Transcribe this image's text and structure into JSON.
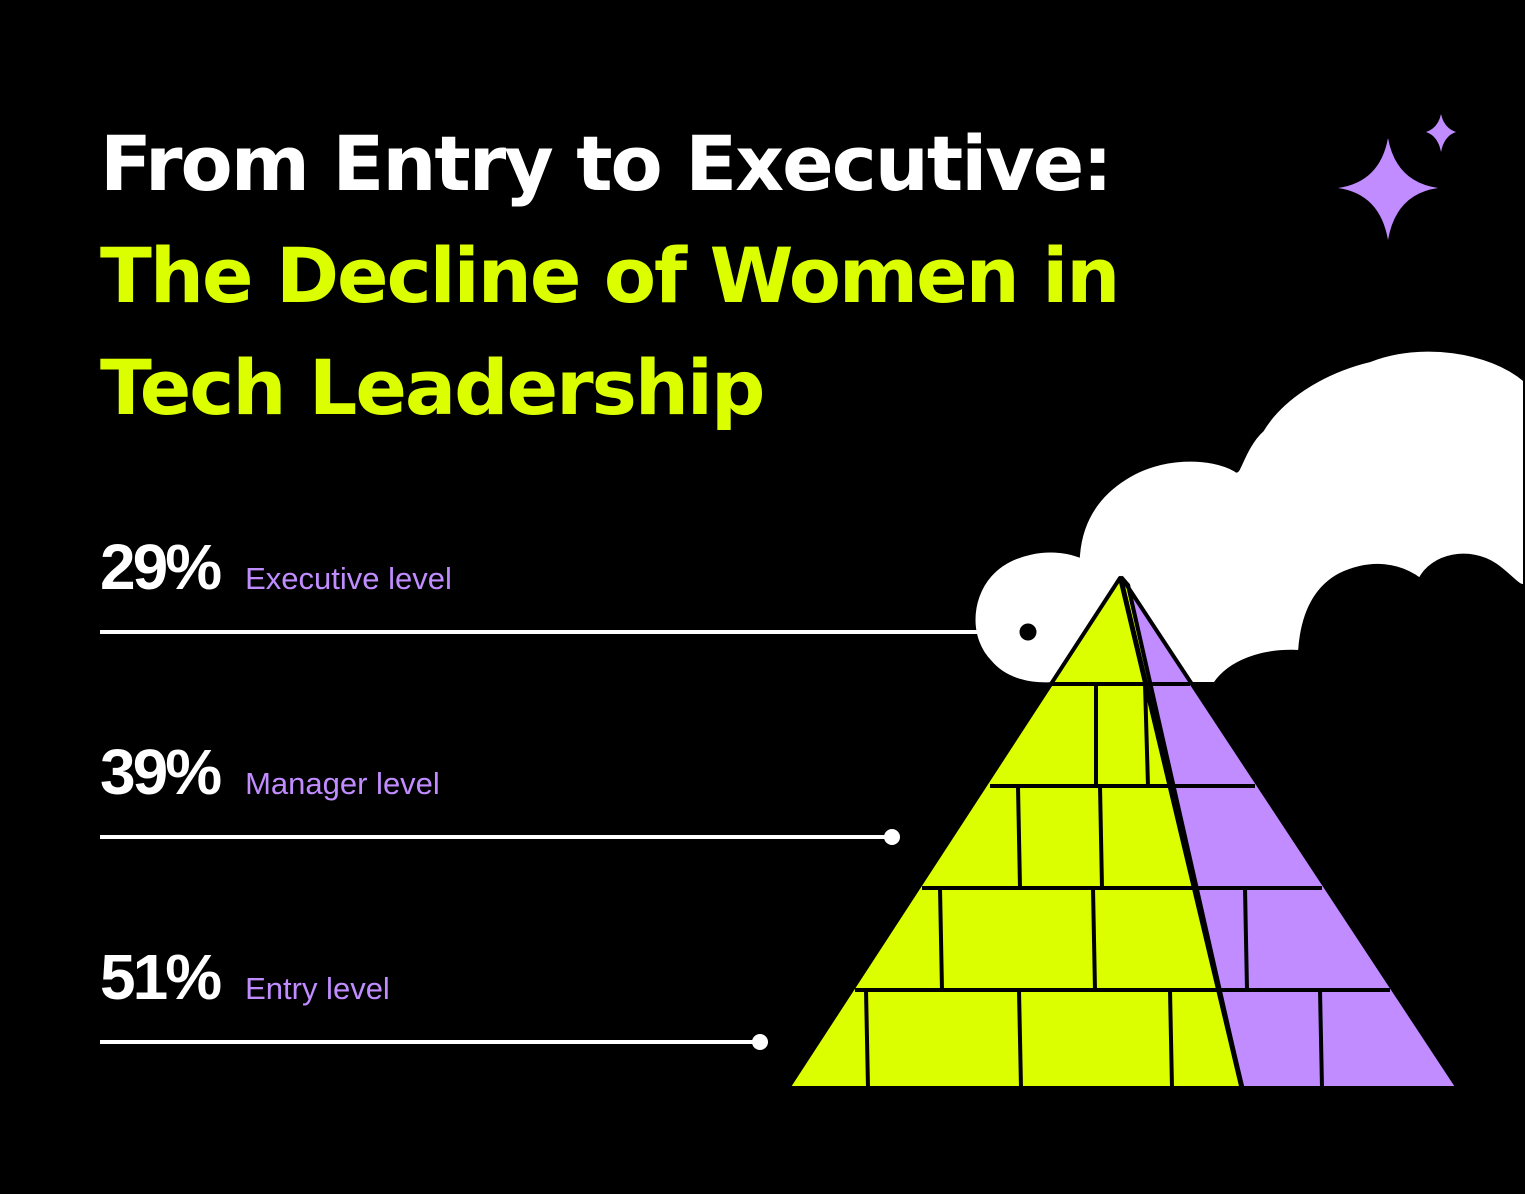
{
  "title": {
    "line1": "From Entry to Executive:",
    "line2": "The Decline of Women in",
    "line3": "Tech Leadership"
  },
  "stats": [
    {
      "value": "29%",
      "label": "Executive level"
    },
    {
      "value": "39%",
      "label": "Manager level"
    },
    {
      "value": "51%",
      "label": "Entry level"
    }
  ],
  "colors": {
    "background": "#000000",
    "accent_lime": "#dcff00",
    "accent_purple": "#c08cff",
    "cloud": "#ffffff"
  },
  "icons": [
    "sparkle-icon",
    "cloud-illustration",
    "pyramid-illustration"
  ]
}
